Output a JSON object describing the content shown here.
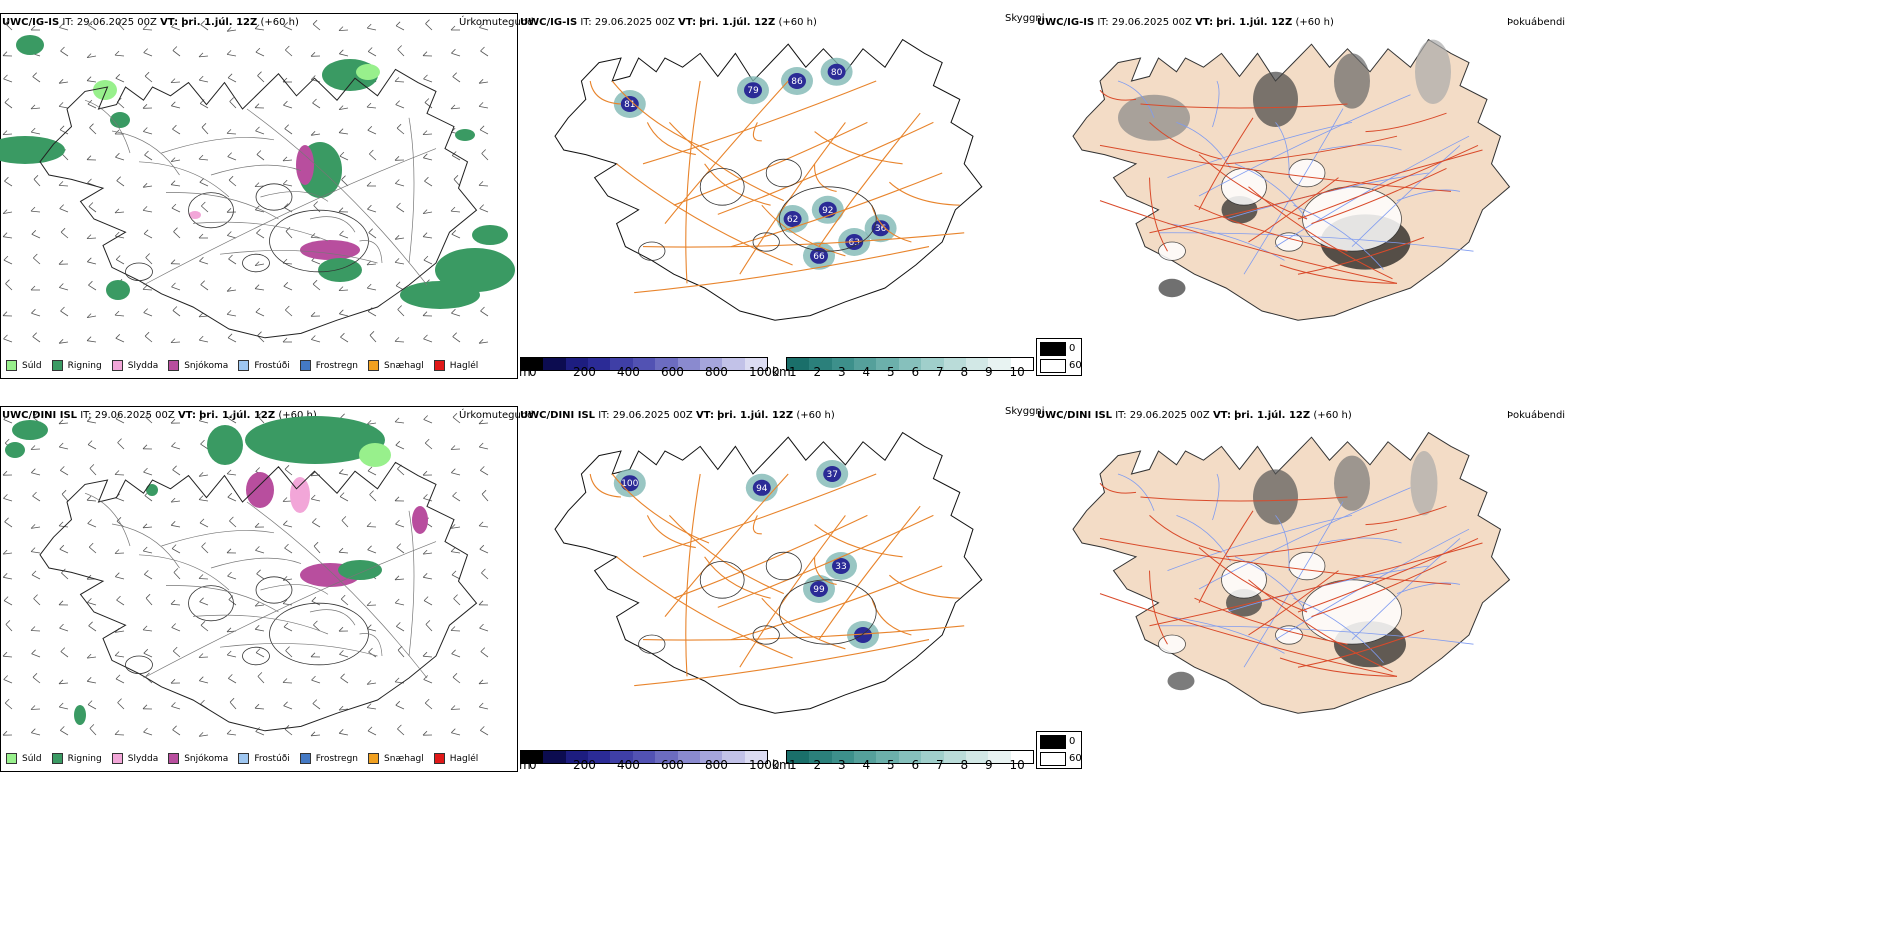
{
  "rows": [
    {
      "model": "UWC/IG-IS",
      "it_label": "IT:",
      "it_value": "29.06.2025 00Z",
      "vt_label": "VT:",
      "vt_value": "þri. 1.júl. 12Z",
      "lead": "(+60 h)"
    },
    {
      "model": "UWC/DINI ISL",
      "it_label": "IT:",
      "it_value": "29.06.2025 00Z",
      "vt_label": "VT:",
      "vt_value": "þri. 1.júl. 12Z",
      "lead": "(+60 h)"
    }
  ],
  "panels": {
    "precip": {
      "type_label": "Úrkomutegund"
    },
    "visibility": {
      "type_label": "Skyggni"
    },
    "cloud": {
      "type_label": "Þokuábendi"
    }
  },
  "precip_legend": [
    {
      "label": "Súld",
      "color": "#98f08c"
    },
    {
      "label": "Rigning",
      "color": "#3a9a63"
    },
    {
      "label": "Slydda",
      "color": "#f2a6d8"
    },
    {
      "label": "Snjókoma",
      "color": "#b84e9e"
    },
    {
      "label": "Frostúði",
      "color": "#9ec6f0"
    },
    {
      "label": "Frostregn",
      "color": "#4479c4"
    },
    {
      "label": "Snæhagl",
      "color": "#f0a020"
    },
    {
      "label": "Haglél",
      "color": "#e01818"
    }
  ],
  "visibility_legend": {
    "m_unit": "m",
    "m_ticks": [
      "0",
      "200",
      "400",
      "600",
      "800",
      "1000"
    ],
    "m_colors": [
      "#000000",
      "#0c0c50",
      "#1d1d80",
      "#2b2b96",
      "#3f3fa6",
      "#5252b3",
      "#6c6cc0",
      "#8a8acf",
      "#a5a5dc",
      "#c2c2e8",
      "#dcdcf2"
    ],
    "km_unit": "km",
    "km_ticks": [
      "1",
      "2",
      "3",
      "4",
      "5",
      "6",
      "7",
      "8",
      "9",
      "10"
    ],
    "km_colors": [
      "#1a6f6a",
      "#2b807b",
      "#3d908b",
      "#55a09b",
      "#6cb0ab",
      "#86c0bc",
      "#a0cfcb",
      "#badcd9",
      "#d2e8e6",
      "#e8f3f2",
      "#ffffff"
    ]
  },
  "cloud_legend": {
    "items": [
      {
        "label": "0",
        "color": "#000000"
      },
      {
        "label": "60",
        "color": "#ffffff"
      }
    ]
  },
  "visibility_values": {
    "row0": [
      "81",
      "79",
      "86",
      "80",
      "63",
      "66",
      "92",
      "62",
      "36"
    ],
    "row1": [
      "100",
      "94",
      "37",
      "33",
      "99"
    ]
  },
  "colors": {
    "land_tan": "#f3dcc6",
    "road_orange": "#e8842c",
    "road_red": "#d94a2a",
    "river_blue": "#7f9bf0",
    "rain_green": "#3a9a63",
    "drizzle_green": "#98f08c",
    "snow_magenta": "#b84e9e",
    "sleet_pink": "#f2a6d8"
  }
}
